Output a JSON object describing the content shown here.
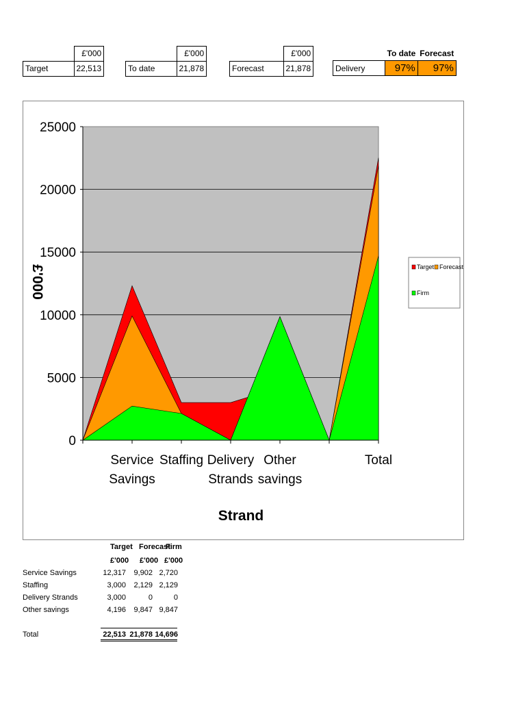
{
  "kpis": {
    "target": {
      "header": "£'000",
      "label": "Target",
      "value": "22,513"
    },
    "to_date": {
      "header": "£'000",
      "label": "To date",
      "value": "21,878"
    },
    "forecast": {
      "header": "£'000",
      "label": "Forecast",
      "value": "21,878"
    },
    "delivery": {
      "label": "Delivery",
      "col1_header": "To date",
      "col2_header": "Forecast",
      "to_date_pct": "97%",
      "forecast_pct": "97%"
    }
  },
  "chart_data": {
    "type": "area",
    "categories": [
      "",
      "Service\nSavings",
      "Staffing",
      "Delivery\nStrands",
      "Other\nsavings",
      "",
      "Total"
    ],
    "series": [
      {
        "name": "Target",
        "color": "#ff0000",
        "values": [
          0,
          12317,
          3000,
          3000,
          4196,
          0,
          22513
        ]
      },
      {
        "name": "Forecast",
        "color": "#ff9900",
        "values": [
          0,
          9902,
          2129,
          0,
          9847,
          0,
          21878
        ]
      },
      {
        "name": "Firm",
        "color": "#00ff00",
        "values": [
          0,
          2720,
          2129,
          0,
          9847,
          0,
          14696
        ]
      }
    ],
    "xlabel": "Strand",
    "ylabel": "£'000",
    "ylim": [
      0,
      25000
    ],
    "yticks": [
      "0",
      "5000",
      "10000",
      "15000",
      "20000",
      "25000"
    ],
    "grid": true,
    "plot_background": "#c0c0c0",
    "legend_position": "right"
  },
  "summary": {
    "headers": {
      "target": "Target",
      "forecast": "Forecast",
      "firm": "Firm"
    },
    "units": {
      "target": "£'000",
      "forecast": "£'000",
      "firm": "£'000"
    },
    "rows": [
      {
        "label": "Service Savings",
        "target": "12,317",
        "forecast": "9,902",
        "firm": "2,720"
      },
      {
        "label": "Staffing",
        "target": "3,000",
        "forecast": "2,129",
        "firm": "2,129"
      },
      {
        "label": "Delivery Strands",
        "target": "3,000",
        "forecast": "0",
        "firm": "0"
      },
      {
        "label": "Other savings",
        "target": "4,196",
        "forecast": "9,847",
        "firm": "9,847"
      }
    ],
    "total": {
      "label": "Total",
      "target": "22,513",
      "forecast": "21,878",
      "firm": "14,696"
    }
  }
}
